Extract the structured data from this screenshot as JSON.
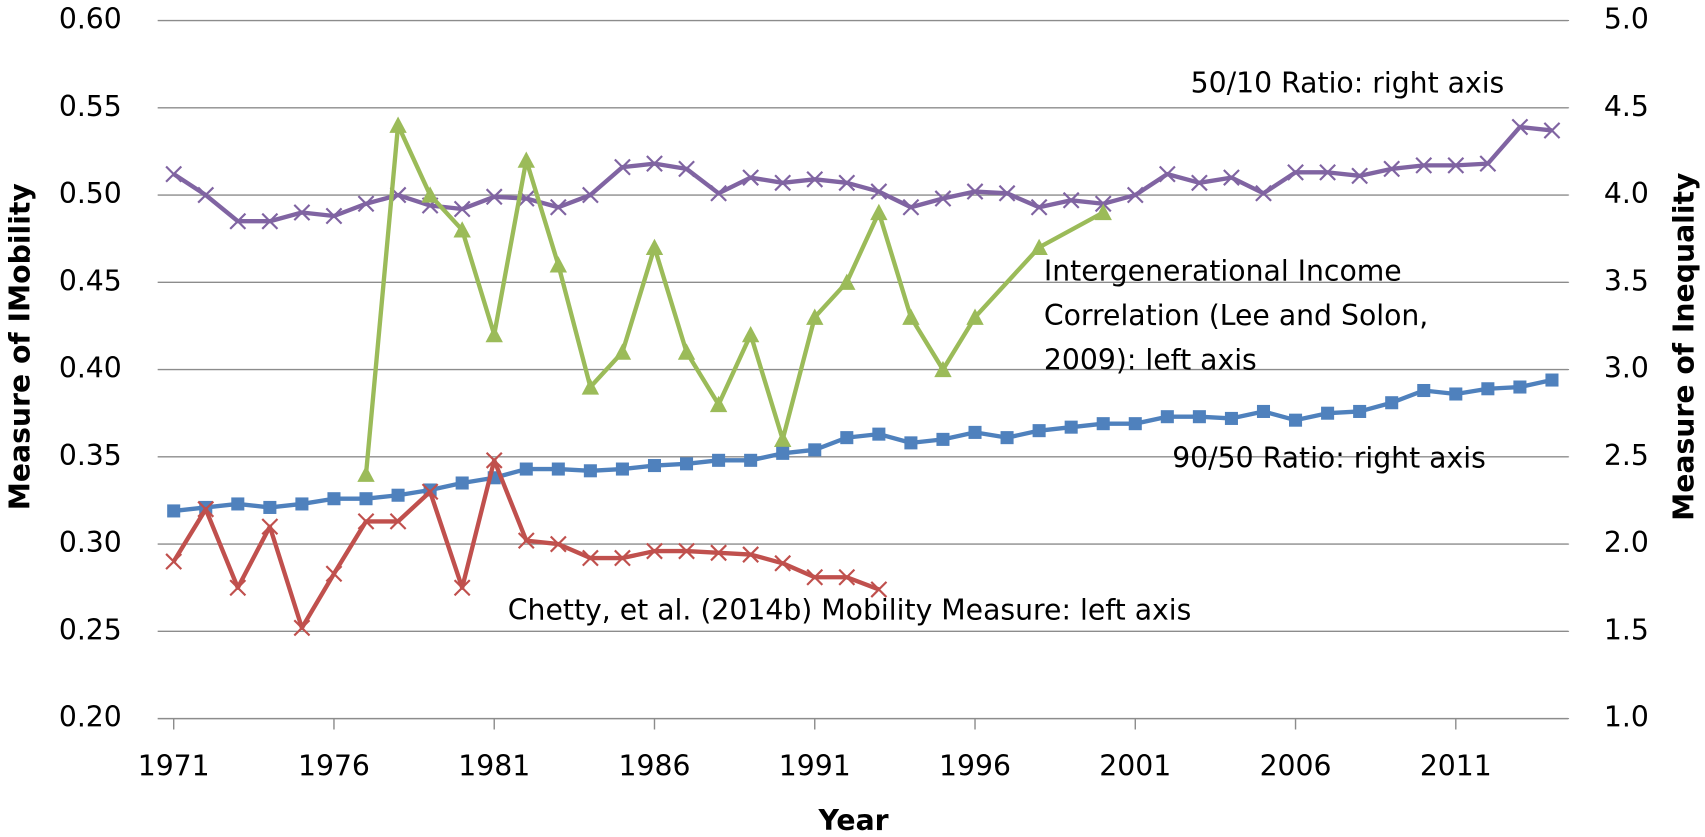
{
  "chart_data": {
    "type": "line",
    "x_label": "Year",
    "y_label": "Measure of IMobility",
    "y2_label": "Measure of Inequality",
    "x": [
      1971,
      1972,
      1973,
      1974,
      1975,
      1976,
      1977,
      1978,
      1979,
      1980,
      1981,
      1982,
      1983,
      1984,
      1985,
      1986,
      1987,
      1988,
      1989,
      1990,
      1991,
      1992,
      1993,
      1994,
      1995,
      1996,
      1997,
      1998,
      1999,
      2000,
      2001,
      2002,
      2003,
      2004,
      2005,
      2006,
      2007,
      2008,
      2009,
      2010,
      2011,
      2012,
      2013,
      2014
    ],
    "xlim": [
      1970.5,
      2014.5
    ],
    "xticks": [
      1971,
      1976,
      1981,
      1986,
      1991,
      1996,
      2001,
      2006,
      2011
    ],
    "ylim": [
      0.2,
      0.6
    ],
    "yticks": [
      {
        "value": 0.2,
        "label": "0.20"
      },
      {
        "value": 0.25,
        "label": "0.25"
      },
      {
        "value": 0.3,
        "label": "0.30"
      },
      {
        "value": 0.35,
        "label": "0.35"
      },
      {
        "value": 0.4,
        "label": "0.40"
      },
      {
        "value": 0.45,
        "label": "0.45"
      },
      {
        "value": 0.5,
        "label": "0.50"
      },
      {
        "value": 0.55,
        "label": "0.55"
      },
      {
        "value": 0.6,
        "label": "0.60"
      }
    ],
    "y2lim": [
      1.0,
      5.0
    ],
    "y2ticks": [
      {
        "value": 1,
        "label": "1.0"
      },
      {
        "value": 1.5,
        "label": "1.5"
      },
      {
        "value": 2,
        "label": "2.0"
      },
      {
        "value": 2.5,
        "label": "2.5"
      },
      {
        "value": 3,
        "label": "3.0"
      },
      {
        "value": 3.5,
        "label": "3.5"
      },
      {
        "value": 4,
        "label": "4.0"
      },
      {
        "value": 4.5,
        "label": "4.5"
      },
      {
        "value": 5,
        "label": "5.0"
      }
    ],
    "grid": true,
    "series": [
      {
        "name": "50/10 Ratio: right axis",
        "color": "#8064a2",
        "marker": "x",
        "axis": "y2",
        "values": [
          4.12,
          4.0,
          3.85,
          3.85,
          3.9,
          3.88,
          3.95,
          4.0,
          3.94,
          3.92,
          3.99,
          3.98,
          3.93,
          4.0,
          4.16,
          4.18,
          4.15,
          4.01,
          4.1,
          4.07,
          4.09,
          4.07,
          4.02,
          3.93,
          3.98,
          4.02,
          4.01,
          3.93,
          3.97,
          3.95,
          4.0,
          4.12,
          4.07,
          4.1,
          4.01,
          4.13,
          4.13,
          4.11,
          4.15,
          4.17,
          4.17,
          4.18,
          4.39,
          4.37
        ]
      },
      {
        "name": "Intergenerational Income Correlation (Lee and Solon, 2009): left axis",
        "color": "#9bbb59",
        "marker": "triangle",
        "x": [
          1977,
          1978,
          1979,
          1980,
          1981,
          1982,
          1983,
          1984,
          1985,
          1986,
          1987,
          1988,
          1989,
          1990,
          1991,
          1992,
          1993,
          1994,
          1995,
          1996,
          1998,
          2000
        ],
        "values": [
          0.34,
          0.54,
          0.5,
          0.48,
          0.42,
          0.52,
          0.46,
          0.39,
          0.41,
          0.47,
          0.41,
          0.38,
          0.42,
          0.36,
          0.43,
          0.45,
          0.49,
          0.43,
          0.4,
          0.43,
          0.47,
          0.49
        ]
      },
      {
        "name": "90/50 Ratio: right axis",
        "color": "#4f81bd",
        "marker": "square",
        "axis": "y2",
        "values": [
          2.19,
          2.21,
          2.23,
          2.21,
          2.23,
          2.26,
          2.26,
          2.28,
          2.31,
          2.35,
          2.38,
          2.43,
          2.43,
          2.42,
          2.43,
          2.45,
          2.46,
          2.48,
          2.48,
          2.52,
          2.54,
          2.61,
          2.63,
          2.58,
          2.6,
          2.64,
          2.61,
          2.65,
          2.67,
          2.69,
          2.69,
          2.73,
          2.73,
          2.72,
          2.76,
          2.71,
          2.75,
          2.76,
          2.81,
          2.88,
          2.86,
          2.89,
          2.9,
          2.94
        ]
      },
      {
        "name": "Chetty, et al. (2014b) Mobility Measure: left axis",
        "color": "#c0504d",
        "marker": "x",
        "x": [
          1971,
          1972,
          1973,
          1974,
          1975,
          1976,
          1977,
          1978,
          1979,
          1980,
          1981,
          1982,
          1983,
          1984,
          1985,
          1986,
          1987,
          1988,
          1989,
          1990,
          1991,
          1992,
          1993
        ],
        "values": [
          0.29,
          0.32,
          0.275,
          0.31,
          0.252,
          0.283,
          0.313,
          0.313,
          0.33,
          0.275,
          0.348,
          0.302,
          0.3,
          0.292,
          0.292,
          0.296,
          0.296,
          0.295,
          0.294,
          0.289,
          0.281,
          0.281,
          0.274
        ]
      }
    ]
  }
}
